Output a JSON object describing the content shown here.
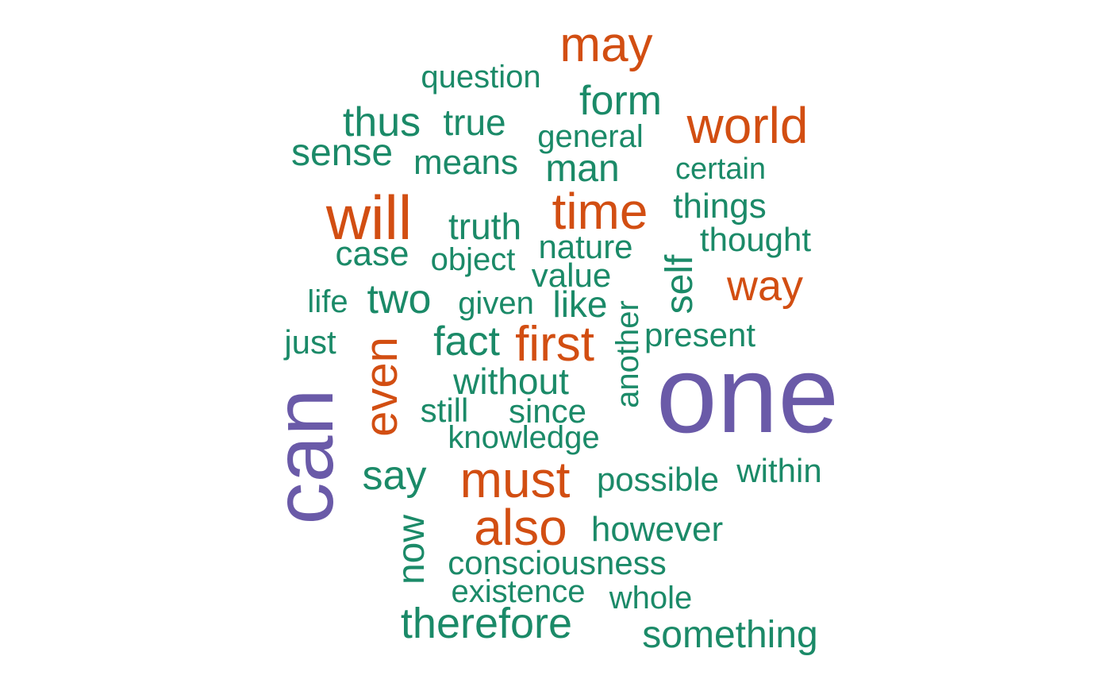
{
  "words": [
    {
      "text": "one",
      "color": "#6a5aa8",
      "tier": 3
    },
    {
      "text": "can",
      "color": "#6a5aa8",
      "tier": 3
    },
    {
      "text": "will",
      "color": "#d24e12",
      "tier": 2
    },
    {
      "text": "time",
      "color": "#d24e12",
      "tier": 2
    },
    {
      "text": "world",
      "color": "#d24e12",
      "tier": 2
    },
    {
      "text": "may",
      "color": "#d24e12",
      "tier": 2
    },
    {
      "text": "first",
      "color": "#d24e12",
      "tier": 2
    },
    {
      "text": "must",
      "color": "#d24e12",
      "tier": 2
    },
    {
      "text": "also",
      "color": "#d24e12",
      "tier": 2
    },
    {
      "text": "even",
      "color": "#d24e12",
      "tier": 2
    },
    {
      "text": "way",
      "color": "#d24e12",
      "tier": 2
    },
    {
      "text": "question",
      "color": "#1b8a68",
      "tier": 1
    },
    {
      "text": "form",
      "color": "#1b8a68",
      "tier": 1
    },
    {
      "text": "thus",
      "color": "#1b8a68",
      "tier": 1
    },
    {
      "text": "true",
      "color": "#1b8a68",
      "tier": 1
    },
    {
      "text": "general",
      "color": "#1b8a68",
      "tier": 1
    },
    {
      "text": "sense",
      "color": "#1b8a68",
      "tier": 1
    },
    {
      "text": "means",
      "color": "#1b8a68",
      "tier": 1
    },
    {
      "text": "man",
      "color": "#1b8a68",
      "tier": 1
    },
    {
      "text": "certain",
      "color": "#1b8a68",
      "tier": 1
    },
    {
      "text": "things",
      "color": "#1b8a68",
      "tier": 1
    },
    {
      "text": "truth",
      "color": "#1b8a68",
      "tier": 1
    },
    {
      "text": "thought",
      "color": "#1b8a68",
      "tier": 1
    },
    {
      "text": "nature",
      "color": "#1b8a68",
      "tier": 1
    },
    {
      "text": "case",
      "color": "#1b8a68",
      "tier": 1
    },
    {
      "text": "object",
      "color": "#1b8a68",
      "tier": 1
    },
    {
      "text": "self",
      "color": "#1b8a68",
      "tier": 1
    },
    {
      "text": "value",
      "color": "#1b8a68",
      "tier": 1
    },
    {
      "text": "life",
      "color": "#1b8a68",
      "tier": 1
    },
    {
      "text": "two",
      "color": "#1b8a68",
      "tier": 1
    },
    {
      "text": "given",
      "color": "#1b8a68",
      "tier": 1
    },
    {
      "text": "like",
      "color": "#1b8a68",
      "tier": 1
    },
    {
      "text": "another",
      "color": "#1b8a68",
      "tier": 1
    },
    {
      "text": "present",
      "color": "#1b8a68",
      "tier": 1
    },
    {
      "text": "just",
      "color": "#1b8a68",
      "tier": 1
    },
    {
      "text": "fact",
      "color": "#1b8a68",
      "tier": 1
    },
    {
      "text": "without",
      "color": "#1b8a68",
      "tier": 1
    },
    {
      "text": "still",
      "color": "#1b8a68",
      "tier": 1
    },
    {
      "text": "since",
      "color": "#1b8a68",
      "tier": 1
    },
    {
      "text": "knowledge",
      "color": "#1b8a68",
      "tier": 1
    },
    {
      "text": "say",
      "color": "#1b8a68",
      "tier": 1
    },
    {
      "text": "possible",
      "color": "#1b8a68",
      "tier": 1
    },
    {
      "text": "within",
      "color": "#1b8a68",
      "tier": 1
    },
    {
      "text": "now",
      "color": "#1b8a68",
      "tier": 1
    },
    {
      "text": "however",
      "color": "#1b8a68",
      "tier": 1
    },
    {
      "text": "consciousness",
      "color": "#1b8a68",
      "tier": 1
    },
    {
      "text": "existence",
      "color": "#1b8a68",
      "tier": 1
    },
    {
      "text": "whole",
      "color": "#1b8a68",
      "tier": 1
    },
    {
      "text": "therefore",
      "color": "#1b8a68",
      "tier": 1
    },
    {
      "text": "something",
      "color": "#1b8a68",
      "tier": 1
    }
  ]
}
